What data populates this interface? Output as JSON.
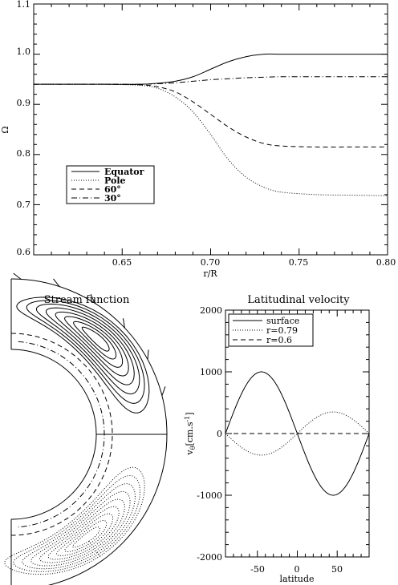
{
  "chart_data": [
    {
      "type": "line",
      "title": "",
      "xlabel": "r/R",
      "ylabel": "Ω",
      "xlim": [
        0.6,
        0.8
      ],
      "ylim": [
        0.6,
        1.1
      ],
      "xticks": [
        "0.65",
        "0.70",
        "0.75",
        "0.80"
      ],
      "yticks": [
        "0.6",
        "0.7",
        "0.8",
        "0.9",
        "1.0",
        "1.1"
      ],
      "legend_position": "lower-left",
      "series": [
        {
          "name": "Equator",
          "style": "solid",
          "x": [
            0.6,
            0.62,
            0.64,
            0.66,
            0.67,
            0.68,
            0.69,
            0.7,
            0.71,
            0.72,
            0.73,
            0.74,
            0.76,
            0.78,
            0.8
          ],
          "y": [
            0.94,
            0.94,
            0.94,
            0.94,
            0.942,
            0.946,
            0.955,
            0.97,
            0.985,
            0.995,
            1.0,
            1.0,
            1.0,
            1.0,
            1.0
          ]
        },
        {
          "name": "Pole",
          "style": "dotted",
          "x": [
            0.6,
            0.62,
            0.64,
            0.66,
            0.67,
            0.68,
            0.69,
            0.7,
            0.71,
            0.72,
            0.73,
            0.74,
            0.76,
            0.78,
            0.8
          ],
          "y": [
            0.94,
            0.94,
            0.94,
            0.938,
            0.932,
            0.915,
            0.885,
            0.84,
            0.79,
            0.755,
            0.735,
            0.725,
            0.72,
            0.719,
            0.718
          ]
        },
        {
          "name": "60°",
          "style": "dashed",
          "x": [
            0.6,
            0.62,
            0.64,
            0.66,
            0.67,
            0.68,
            0.69,
            0.7,
            0.71,
            0.72,
            0.73,
            0.74,
            0.76,
            0.78,
            0.8
          ],
          "y": [
            0.94,
            0.94,
            0.94,
            0.939,
            0.935,
            0.925,
            0.905,
            0.88,
            0.855,
            0.835,
            0.822,
            0.817,
            0.815,
            0.815,
            0.815
          ]
        },
        {
          "name": "30°",
          "style": "dashdot",
          "x": [
            0.6,
            0.62,
            0.64,
            0.66,
            0.67,
            0.68,
            0.69,
            0.7,
            0.71,
            0.72,
            0.73,
            0.74,
            0.76,
            0.78,
            0.8
          ],
          "y": [
            0.94,
            0.94,
            0.94,
            0.94,
            0.941,
            0.943,
            0.946,
            0.949,
            0.951,
            0.953,
            0.954,
            0.955,
            0.955,
            0.955,
            0.955
          ]
        }
      ]
    },
    {
      "type": "line",
      "title": "Stream function",
      "note_type": "contour"
    },
    {
      "type": "line",
      "title": "Latitudinal velocity",
      "xlabel": "latitude",
      "ylabel": "v",
      "ylabel_sub": "θ",
      "ylabel_units": "[cm.s",
      "ylabel_exp": "-1",
      "ylabel_close": "]",
      "xlim": [
        -90,
        90
      ],
      "ylim": [
        -2000,
        2000
      ],
      "xticks": [
        "-50",
        "0",
        "50"
      ],
      "yticks": [
        "-2000",
        "-1000",
        "0",
        "1000",
        "2000"
      ],
      "legend_position": "top-left",
      "series": [
        {
          "name": "surface",
          "style": "solid",
          "amplitude": 1000
        },
        {
          "name": "r=0.79",
          "style": "dotted",
          "amplitude": -350
        },
        {
          "name": "r=0.6",
          "style": "dashed",
          "amplitude": 0
        }
      ]
    }
  ]
}
